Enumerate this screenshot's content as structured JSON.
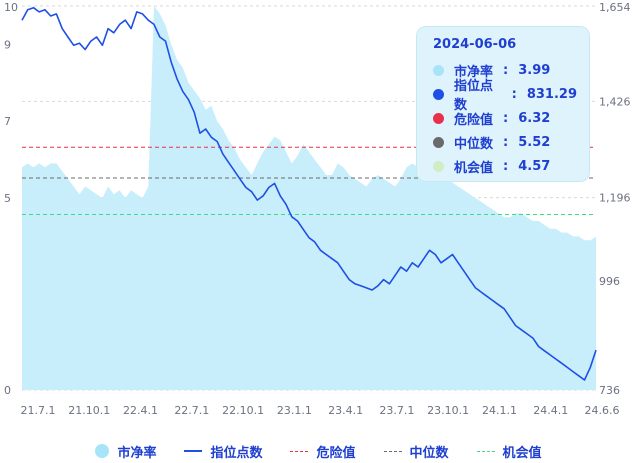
{
  "chart_data": {
    "type": "line",
    "x_tick_labels": [
      "21.7.1",
      "21.10.1",
      "22.4.1",
      "22.7.1",
      "22.10.1",
      "23.1.1",
      "23.4.1",
      "23.7.1",
      "23.10.1",
      "24.1.1",
      "24.4.1",
      "24.6.6"
    ],
    "y_left_ticks": [
      "0",
      "5",
      "7",
      "9",
      "10"
    ],
    "y_right_ticks": [
      "736",
      "996",
      "1,196",
      "1,426",
      "1,654"
    ],
    "y_left_range": [
      0,
      10
    ],
    "y_right_range": [
      736,
      1654
    ],
    "reference_lines": {
      "danger": 6.32,
      "median": 5.52,
      "opportunity": 4.57
    },
    "series": [
      {
        "name": "市净率",
        "type": "area",
        "values": [
          5.8,
          5.9,
          5.8,
          5.9,
          5.8,
          5.9,
          5.9,
          5.7,
          5.5,
          5.3,
          5.1,
          5.3,
          5.2,
          5.1,
          5.0,
          5.3,
          5.1,
          5.2,
          5.0,
          5.2,
          5.1,
          5.0,
          5.3,
          10.0,
          9.8,
          9.5,
          9.0,
          8.6,
          8.4,
          8.0,
          7.8,
          7.6,
          7.3,
          7.4,
          7.0,
          6.8,
          6.5,
          6.3,
          6.0,
          5.8,
          5.6,
          5.9,
          6.2,
          6.4,
          6.6,
          6.5,
          6.2,
          5.9,
          6.1,
          6.4,
          6.2,
          6.0,
          5.8,
          5.6,
          5.6,
          5.9,
          5.8,
          5.6,
          5.5,
          5.4,
          5.3,
          5.5,
          5.6,
          5.5,
          5.4,
          5.3,
          5.5,
          5.8,
          5.9,
          5.8,
          5.7,
          5.6,
          5.6,
          5.6,
          5.5,
          5.4,
          5.3,
          5.2,
          5.1,
          5.0,
          4.9,
          4.8,
          4.7,
          4.6,
          4.5,
          4.5,
          4.6,
          4.6,
          4.5,
          4.4,
          4.4,
          4.3,
          4.2,
          4.2,
          4.1,
          4.1,
          4.0,
          4.0,
          3.9,
          3.9,
          3.99
        ]
      },
      {
        "name": "指位点数",
        "type": "line",
        "values": [
          1620,
          1645,
          1650,
          1640,
          1645,
          1630,
          1635,
          1600,
          1580,
          1560,
          1565,
          1550,
          1570,
          1580,
          1560,
          1600,
          1590,
          1610,
          1620,
          1600,
          1640,
          1635,
          1620,
          1610,
          1580,
          1570,
          1520,
          1480,
          1450,
          1430,
          1400,
          1350,
          1360,
          1340,
          1330,
          1300,
          1280,
          1260,
          1240,
          1220,
          1210,
          1190,
          1200,
          1220,
          1230,
          1200,
          1180,
          1150,
          1140,
          1120,
          1100,
          1090,
          1070,
          1060,
          1050,
          1040,
          1020,
          1000,
          990,
          985,
          980,
          975,
          985,
          1000,
          990,
          1010,
          1030,
          1020,
          1040,
          1030,
          1050,
          1070,
          1060,
          1040,
          1050,
          1060,
          1040,
          1020,
          1000,
          980,
          970,
          960,
          950,
          940,
          930,
          910,
          890,
          880,
          870,
          860,
          840,
          830,
          820,
          810,
          800,
          790,
          780,
          770,
          760,
          790,
          831.29
        ]
      }
    ],
    "tooltip": {
      "date": "2024-06-06",
      "rows": [
        {
          "label": "市净率",
          "value": "3.99",
          "color": "#a8e4f8"
        },
        {
          "label": "指位点数",
          "value": "831.29",
          "color": "#1e50e6"
        },
        {
          "label": "危险值",
          "value": "6.32",
          "color": "#e8314a"
        },
        {
          "label": "中位数",
          "value": "5.52",
          "color": "#6b6b6b"
        },
        {
          "label": "机会值",
          "value": "4.57",
          "color": "#cfeec6"
        }
      ]
    },
    "legend": [
      {
        "label": "市净率"
      },
      {
        "label": "指位点数"
      },
      {
        "label": "危险值"
      },
      {
        "label": "中位数"
      },
      {
        "label": "机会值"
      }
    ],
    "colors": {
      "area_fill": "#c9eefb",
      "line": "#1e50e6",
      "danger": "#e8314a",
      "median": "#6b6b6b",
      "opportunity": "#3ddc84",
      "grid": "#d9d9d9"
    }
  }
}
